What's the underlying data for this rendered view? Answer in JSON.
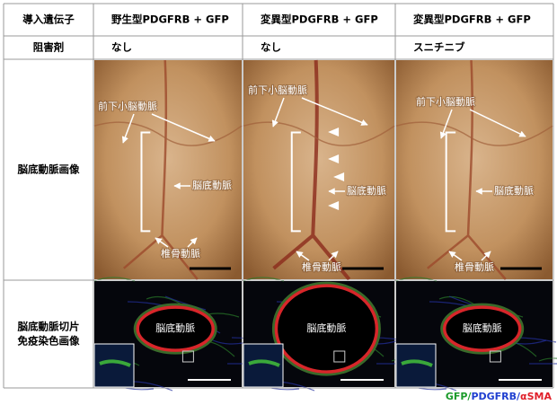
{
  "table": {
    "header": [
      "導入遺伝子",
      "野生型PDGFRB + GFP",
      "変異型PDGFRB + GFP",
      "変異型PDGFRB + GFP"
    ],
    "inhibitor": [
      "阻害剤",
      "なし",
      "なし",
      "スニチニブ"
    ],
    "rows": [
      {
        "label": [
          "脳底動脈画像"
        ],
        "panels": [
          {
            "labels": [
              "前下小脳動脈",
              "脳底動脈",
              "椎骨動脈"
            ]
          },
          {
            "labels": [
              "前下小脳動脈",
              "脳底動脈",
              "椎骨動脈"
            ]
          },
          {
            "labels": [
              "前下小脳動脈",
              "脳底動脈",
              "椎骨動脈"
            ]
          }
        ]
      },
      {
        "label": [
          "脳底動脈切片",
          "免疫染色画像"
        ],
        "panels": [
          {
            "labels": [
              "脳底動脈"
            ]
          },
          {
            "labels": [
              "脳底動脈"
            ]
          },
          {
            "labels": [
              "脳底動脈"
            ]
          }
        ]
      }
    ]
  },
  "legend": [
    {
      "text": "GFP/",
      "color": "#1a9a2a"
    },
    {
      "text": "PDGFRB/",
      "color": "#1f3fd0"
    },
    {
      "text": "αSMA",
      "color": "#e0202a"
    }
  ]
}
